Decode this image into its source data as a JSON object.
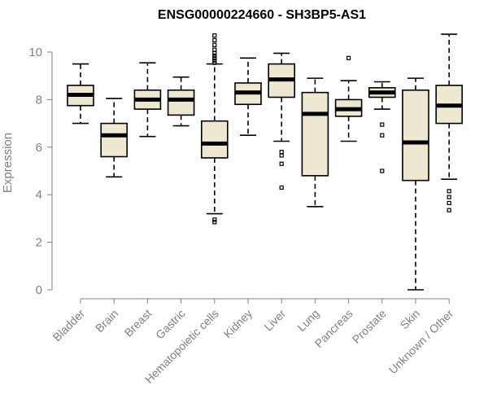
{
  "chart_data": {
    "type": "boxplot",
    "title": "ENSG00000224660 - SH3BP5-AS1",
    "xlabel": "",
    "ylabel": "Expression",
    "ylim": [
      0,
      10
    ],
    "yticks": [
      0,
      2,
      4,
      6,
      8,
      10
    ],
    "grid": false,
    "colors": {
      "box_fill": "#EEE8D2",
      "stroke": "#000000",
      "axis": "#808080"
    },
    "categories": [
      "Bladder",
      "Brain",
      "Breast",
      "Gastric",
      "Hematopoietic cells",
      "Kidney",
      "Liver",
      "Lung",
      "Pancreas",
      "Prostate",
      "Skin",
      "Unknown / Other"
    ],
    "boxes": [
      {
        "label": "Bladder",
        "whisker_low": 7.0,
        "q1": 7.75,
        "median": 8.2,
        "q3": 8.6,
        "whisker_high": 9.5,
        "outliers": []
      },
      {
        "label": "Brain",
        "whisker_low": 4.75,
        "q1": 5.6,
        "median": 6.5,
        "q3": 7.0,
        "whisker_high": 8.05,
        "outliers": []
      },
      {
        "label": "Breast",
        "whisker_low": 6.45,
        "q1": 7.6,
        "median": 8.0,
        "q3": 8.4,
        "whisker_high": 9.55,
        "outliers": []
      },
      {
        "label": "Gastric",
        "whisker_low": 6.9,
        "q1": 7.35,
        "median": 8.0,
        "q3": 8.4,
        "whisker_high": 8.95,
        "outliers": []
      },
      {
        "label": "Hematopoietic cells",
        "whisker_low": 3.2,
        "q1": 5.55,
        "median": 6.15,
        "q3": 7.1,
        "whisker_high": 9.5,
        "outliers": [
          2.85,
          2.95,
          9.55,
          9.65,
          9.75,
          9.85,
          9.95,
          10.1,
          10.3,
          10.5,
          10.7
        ]
      },
      {
        "label": "Kidney",
        "whisker_low": 6.5,
        "q1": 7.8,
        "median": 8.3,
        "q3": 8.7,
        "whisker_high": 9.75,
        "outliers": []
      },
      {
        "label": "Liver",
        "whisker_low": 6.25,
        "q1": 8.1,
        "median": 8.85,
        "q3": 9.5,
        "whisker_high": 9.95,
        "outliers": [
          4.3,
          5.3,
          5.65,
          5.8
        ]
      },
      {
        "label": "Lung",
        "whisker_low": 3.5,
        "q1": 4.8,
        "median": 7.4,
        "q3": 8.3,
        "whisker_high": 8.9,
        "outliers": []
      },
      {
        "label": "Pancreas",
        "whisker_low": 6.25,
        "q1": 7.3,
        "median": 7.6,
        "q3": 8.0,
        "whisker_high": 8.8,
        "outliers": [
          9.75
        ]
      },
      {
        "label": "Prostate",
        "whisker_low": 7.6,
        "q1": 8.1,
        "median": 8.3,
        "q3": 8.5,
        "whisker_high": 8.75,
        "outliers": [
          5.0,
          6.5,
          6.95
        ]
      },
      {
        "label": "Skin",
        "whisker_low": 0.0,
        "q1": 4.6,
        "median": 6.2,
        "q3": 8.4,
        "whisker_high": 8.9,
        "outliers": []
      },
      {
        "label": "Unknown / Other",
        "whisker_low": 4.65,
        "q1": 7.0,
        "median": 7.75,
        "q3": 8.6,
        "whisker_high": 10.75,
        "outliers": [
          3.35,
          3.65,
          3.9,
          4.15
        ]
      }
    ]
  }
}
